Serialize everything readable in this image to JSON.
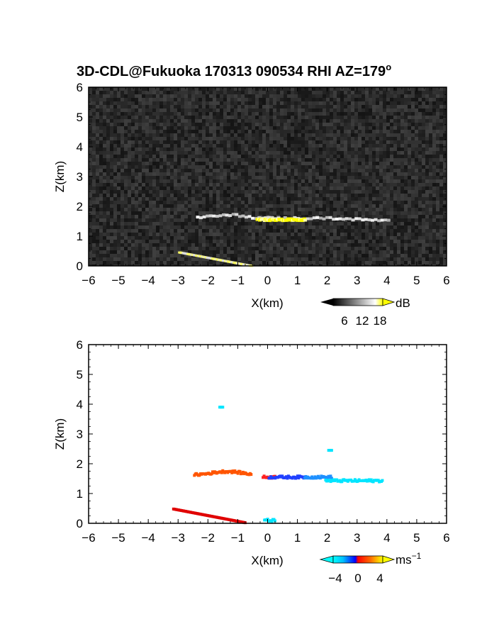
{
  "chart_data": [
    {
      "type": "heatmap",
      "title": "3D-CDL@Fukuoka 170313 090534 RHI AZ=179",
      "title_sup": "o",
      "xlabel": "X(km)",
      "ylabel": "Z(km)",
      "xlim": [
        -6,
        6
      ],
      "ylim": [
        0,
        6
      ],
      "xticks": [
        "-6",
        "-5",
        "-4",
        "-3",
        "-2",
        "-1",
        "0",
        "1",
        "2",
        "3",
        "4",
        "5",
        "6"
      ],
      "yticks": [
        "0",
        "1",
        "2",
        "3",
        "4",
        "5",
        "6"
      ],
      "background": "noisy dark gray field",
      "colorbar": {
        "unit": "dB",
        "ticks": [
          "6",
          "12",
          "18"
        ],
        "range": [
          0,
          20
        ],
        "colors": [
          "#000000",
          "#ffffff",
          "#ffff00"
        ]
      },
      "features": [
        {
          "kind": "layer",
          "x_start": -2.4,
          "x_end": 4.0,
          "z": 1.6,
          "value_db": 12
        },
        {
          "kind": "core",
          "x_start": -0.4,
          "x_end": 1.2,
          "z": 1.55,
          "value_db": 18
        },
        {
          "kind": "ground",
          "x_start": -3.0,
          "x_end": -0.6,
          "z_start": 0.45,
          "z_end": 0.0,
          "value_db": 18
        }
      ]
    },
    {
      "type": "heatmap",
      "xlabel": "X(km)",
      "ylabel": "Z(km)",
      "xlim": [
        -6,
        6
      ],
      "ylim": [
        0,
        6
      ],
      "xticks": [
        "-6",
        "-5",
        "-4",
        "-3",
        "-2",
        "-1",
        "0",
        "1",
        "2",
        "3",
        "4",
        "5",
        "6"
      ],
      "yticks": [
        "0",
        "1",
        "2",
        "3",
        "4",
        "5",
        "6"
      ],
      "colorbar": {
        "unit": "ms",
        "unit_sup": "−1",
        "ticks": [
          "−4",
          "0",
          "4"
        ],
        "range": [
          -5,
          5
        ],
        "colors": [
          "#00ffff",
          "#0000ff",
          "#ff0000",
          "#ffff00"
        ]
      },
      "points": [
        {
          "x_start": -2.5,
          "x_end": -0.6,
          "z": 1.62,
          "velocity": 2.5,
          "color": "#ff5500"
        },
        {
          "x_start": -0.2,
          "x_end": 0.2,
          "z": 1.55,
          "velocity": 0.5,
          "color": "#ff2020"
        },
        {
          "x_start": 0.0,
          "x_end": 1.2,
          "z": 1.55,
          "velocity": -1.5,
          "color": "#2040ff"
        },
        {
          "x_start": 1.2,
          "x_end": 2.1,
          "z": 1.55,
          "velocity": -3.0,
          "color": "#1e90ff"
        },
        {
          "x_start": 1.9,
          "x_end": 3.8,
          "z": 1.43,
          "velocity": -4.0,
          "color": "#00e5ff"
        },
        {
          "x_start": -1.65,
          "x_end": -1.55,
          "z": 3.9,
          "velocity": -4.0,
          "color": "#00e5ff"
        },
        {
          "x_start": 2.0,
          "x_end": 2.1,
          "z": 2.45,
          "velocity": -4.0,
          "color": "#00e5ff"
        },
        {
          "x_start": -3.2,
          "x_end": -0.8,
          "z_start": 0.48,
          "z_end": 0.02,
          "velocity": 2.0,
          "color": "#e00000"
        },
        {
          "x_start": -0.15,
          "x_end": 0.2,
          "z": 0.1,
          "velocity": -4.0,
          "color": "#00e5ff"
        }
      ]
    }
  ]
}
